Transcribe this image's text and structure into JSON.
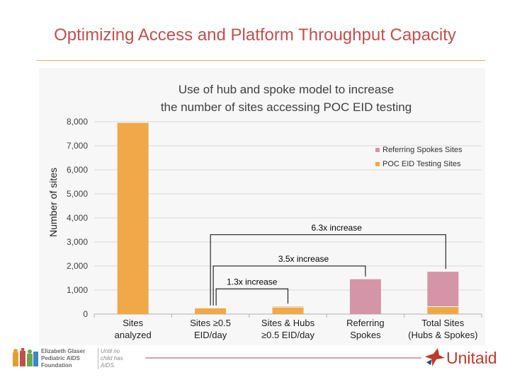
{
  "slide": {
    "title": "Optimizing Access and Platform Throughput Capacity"
  },
  "chart_data": {
    "type": "bar",
    "stacked": true,
    "title": "Use of hub and spoke model to increase the number of sites accessing POC EID testing",
    "title_lines": [
      "Use of hub and spoke model to increase",
      "the number of sites accessing POC EID testing"
    ],
    "ylabel": "Number of sites",
    "xlabel": "",
    "ylim": [
      0,
      8000
    ],
    "yticks": [
      0,
      1000,
      2000,
      3000,
      4000,
      5000,
      6000,
      7000,
      8000
    ],
    "ytick_labels": [
      "0",
      "1,000",
      "2,000",
      "3,000",
      "4,000",
      "5,000",
      "6,000",
      "7,000",
      "8,000"
    ],
    "categories": [
      [
        "Sites",
        "analyzed"
      ],
      [
        "Sites ≥0.5",
        "EID/day"
      ],
      [
        "Sites & Hubs",
        "≥0.5 EID/day"
      ],
      [
        "Referring",
        "Spokes"
      ],
      [
        "Total Sites",
        "(Hubs & Spokes)"
      ]
    ],
    "series": [
      {
        "name": "POC EID Testing Sites",
        "color": "#f0a848",
        "values": [
          7950,
          240,
          290,
          0,
          310
        ]
      },
      {
        "name": "Referring Spokes Sites",
        "color": "#d495a8",
        "values": [
          0,
          0,
          30,
          1450,
          1450
        ]
      }
    ],
    "legend_order": [
      1,
      0
    ],
    "legend_position": "top-right",
    "grid": true,
    "annotations": [
      {
        "text": "1.3x increase",
        "from": 1,
        "to": 2,
        "level": 1050
      },
      {
        "text": "3.5x increase",
        "from": 1,
        "to": 3,
        "level": 2000
      },
      {
        "text": "6.3x increase",
        "from": 1,
        "to": 4,
        "level": 3300
      }
    ]
  },
  "footer": {
    "org_lines": [
      "Elizabeth Glaser",
      "Pediatric AIDS",
      "Foundation"
    ],
    "tagline_lines": [
      "Until no",
      "child has",
      "AIDS."
    ],
    "partner": "Unitaid"
  },
  "colors": {
    "title": "#c0504d",
    "rule": "#f0a868",
    "unitaid": "#c0392b"
  }
}
